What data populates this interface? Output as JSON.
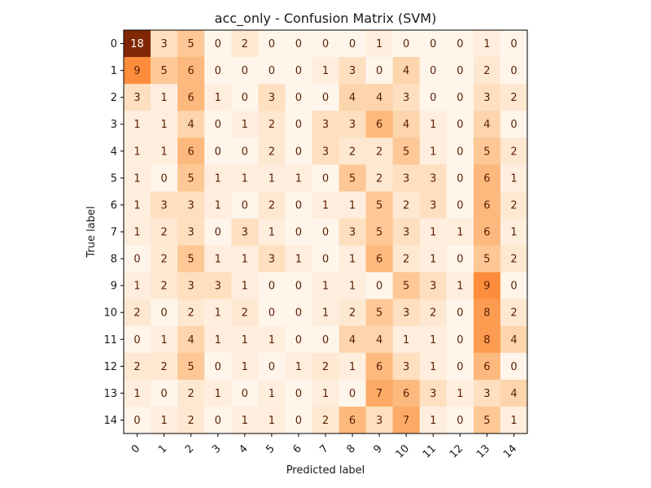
{
  "chart_data": {
    "type": "heatmap",
    "title": "acc_only - Confusion Matrix (SVM)",
    "xlabel": "Predicted label",
    "ylabel": "True label",
    "x_categories": [
      "0",
      "1",
      "2",
      "3",
      "4",
      "5",
      "6",
      "7",
      "8",
      "9",
      "10",
      "11",
      "12",
      "13",
      "14"
    ],
    "y_categories": [
      "0",
      "1",
      "2",
      "3",
      "4",
      "5",
      "6",
      "7",
      "8",
      "9",
      "10",
      "11",
      "12",
      "13",
      "14"
    ],
    "values": [
      [
        18,
        3,
        5,
        0,
        2,
        0,
        0,
        0,
        0,
        1,
        0,
        0,
        0,
        1,
        0
      ],
      [
        9,
        5,
        6,
        0,
        0,
        0,
        0,
        1,
        3,
        0,
        4,
        0,
        0,
        2,
        0
      ],
      [
        3,
        1,
        6,
        1,
        0,
        3,
        0,
        0,
        4,
        4,
        3,
        0,
        0,
        3,
        2
      ],
      [
        1,
        1,
        4,
        0,
        1,
        2,
        0,
        3,
        3,
        6,
        4,
        1,
        0,
        4,
        0
      ],
      [
        1,
        1,
        6,
        0,
        0,
        2,
        0,
        3,
        2,
        2,
        5,
        1,
        0,
        5,
        2
      ],
      [
        1,
        0,
        5,
        1,
        1,
        1,
        1,
        0,
        5,
        2,
        3,
        3,
        0,
        6,
        1
      ],
      [
        1,
        3,
        3,
        1,
        0,
        2,
        0,
        1,
        1,
        5,
        2,
        3,
        0,
        6,
        2
      ],
      [
        1,
        2,
        3,
        0,
        3,
        1,
        0,
        0,
        3,
        5,
        3,
        1,
        1,
        6,
        1
      ],
      [
        0,
        2,
        5,
        1,
        1,
        3,
        1,
        0,
        1,
        6,
        2,
        1,
        0,
        5,
        2
      ],
      [
        1,
        2,
        3,
        3,
        1,
        0,
        0,
        1,
        1,
        0,
        5,
        3,
        1,
        9,
        0
      ],
      [
        2,
        0,
        2,
        1,
        2,
        0,
        0,
        1,
        2,
        5,
        3,
        2,
        0,
        8,
        2
      ],
      [
        0,
        1,
        4,
        1,
        1,
        1,
        0,
        0,
        4,
        4,
        1,
        1,
        0,
        8,
        4
      ],
      [
        2,
        2,
        5,
        0,
        1,
        0,
        1,
        2,
        1,
        6,
        3,
        1,
        0,
        6,
        0
      ],
      [
        1,
        0,
        2,
        1,
        0,
        1,
        0,
        1,
        0,
        7,
        6,
        3,
        1,
        3,
        4
      ],
      [
        0,
        1,
        2,
        0,
        1,
        1,
        0,
        2,
        6,
        3,
        7,
        1,
        0,
        5,
        1
      ]
    ],
    "colormap": "Oranges",
    "value_range": [
      0,
      18
    ],
    "x_tick_rotation_deg": 45,
    "grid": false,
    "legend": "none"
  }
}
